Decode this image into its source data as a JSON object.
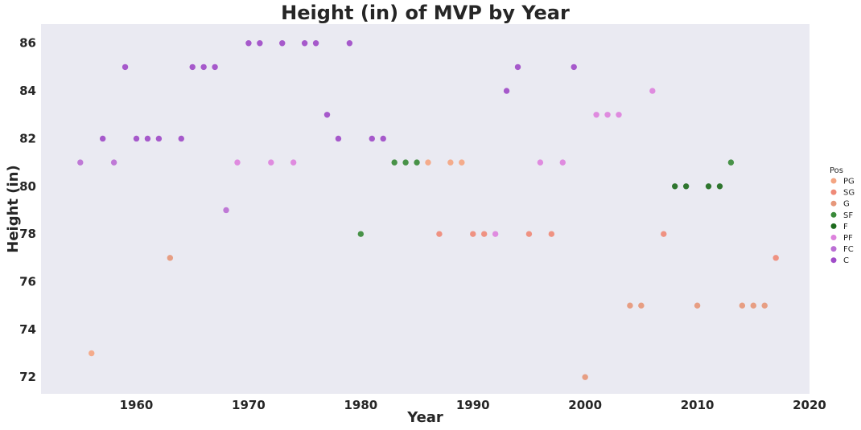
{
  "chart_data": {
    "type": "scatter",
    "title": "Height (in) of MVP by Year",
    "xlabel": "Year",
    "ylabel": "Height (in)",
    "xlim": [
      1951.5,
      2020
    ],
    "ylim": [
      71.3,
      86.8
    ],
    "xticks": [
      1960,
      1970,
      1980,
      1990,
      2000,
      2010,
      2020
    ],
    "yticks": [
      72,
      74,
      76,
      78,
      80,
      82,
      84,
      86
    ],
    "grid": false,
    "legend": {
      "title": "Pos",
      "position": "right"
    },
    "series": [
      {
        "name": "PG",
        "color": "#f4a582",
        "points": [
          [
            1956,
            73
          ],
          [
            1986,
            81
          ],
          [
            1988,
            81
          ],
          [
            1989,
            81
          ]
        ]
      },
      {
        "name": "SG",
        "color": "#ef8a78",
        "points": [
          [
            1987,
            78
          ],
          [
            1990,
            78
          ],
          [
            1991,
            78
          ],
          [
            1995,
            78
          ],
          [
            1997,
            78
          ],
          [
            2007,
            78
          ],
          [
            2017,
            77
          ]
        ]
      },
      {
        "name": "G",
        "color": "#e6977a",
        "points": [
          [
            1963,
            77
          ],
          [
            2000,
            72
          ],
          [
            2004,
            75
          ],
          [
            2005,
            75
          ],
          [
            2010,
            75
          ],
          [
            2014,
            75
          ],
          [
            2015,
            75
          ],
          [
            2016,
            75
          ]
        ]
      },
      {
        "name": "SF",
        "color": "#3a8a3a",
        "points": [
          [
            1980,
            78
          ],
          [
            1983,
            81
          ],
          [
            1984,
            81
          ],
          [
            1985,
            81
          ],
          [
            2013,
            81
          ]
        ]
      },
      {
        "name": "F",
        "color": "#1e6b1e",
        "points": [
          [
            2008,
            80
          ],
          [
            2009,
            80
          ],
          [
            2011,
            80
          ],
          [
            2012,
            80
          ]
        ]
      },
      {
        "name": "PF",
        "color": "#dd82dd",
        "points": [
          [
            1969,
            81
          ],
          [
            1972,
            81
          ],
          [
            1974,
            81
          ],
          [
            1992,
            78
          ],
          [
            1996,
            81
          ],
          [
            1998,
            81
          ],
          [
            2001,
            83
          ],
          [
            2002,
            83
          ],
          [
            2003,
            83
          ],
          [
            2006,
            84
          ]
        ]
      },
      {
        "name": "FC",
        "color": "#bb6fd4",
        "points": [
          [
            1955,
            81
          ],
          [
            1958,
            81
          ],
          [
            1968,
            79
          ]
        ]
      },
      {
        "name": "C",
        "color": "#a04cc8",
        "points": [
          [
            1957,
            82
          ],
          [
            1959,
            85
          ],
          [
            1960,
            82
          ],
          [
            1961,
            82
          ],
          [
            1962,
            82
          ],
          [
            1964,
            82
          ],
          [
            1965,
            85
          ],
          [
            1966,
            85
          ],
          [
            1967,
            85
          ],
          [
            1970,
            86
          ],
          [
            1971,
            86
          ],
          [
            1973,
            86
          ],
          [
            1975,
            86
          ],
          [
            1976,
            86
          ],
          [
            1977,
            83
          ],
          [
            1978,
            82
          ],
          [
            1979,
            86
          ],
          [
            1981,
            82
          ],
          [
            1982,
            82
          ],
          [
            1993,
            84
          ],
          [
            1994,
            85
          ],
          [
            1999,
            85
          ]
        ]
      }
    ]
  }
}
